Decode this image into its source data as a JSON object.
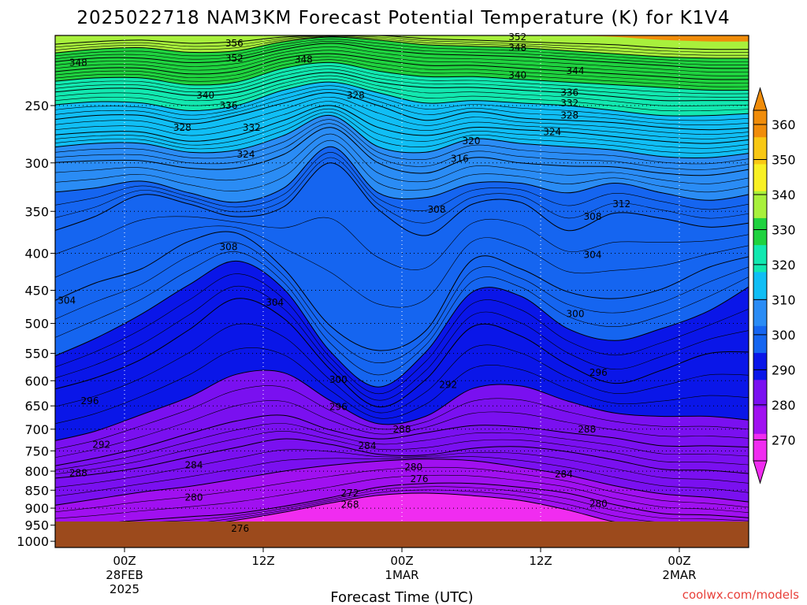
{
  "title": "2025022718 NAM3KM Forecast Potential Temperature (K) for K1V4",
  "credit": "coolwx.com/models",
  "colors": {
    "ground": "#9c4a1c",
    "credit": "#e8403a",
    "bands": [
      "#f02cf0",
      "#a010f0",
      "#7a10f0",
      "#0a16e8",
      "#1565f0",
      "#2a8cf5",
      "#10bef5",
      "#12e8b0",
      "#1fd23f",
      "#a8f03c",
      "#f8f024",
      "#f8c814",
      "#f08c0a"
    ]
  },
  "chart_data": {
    "type": "contour",
    "title": "2025022718 NAM3KM Forecast Potential Temperature (K) for K1V4",
    "xlabel": "Forecast Time (UTC)",
    "ylabel": "",
    "y_scale": "log-pressure",
    "ylim": [
      1000,
      200
    ],
    "grid": "dotted",
    "y_ticks": [
      250,
      300,
      350,
      400,
      450,
      500,
      550,
      600,
      650,
      700,
      750,
      800,
      850,
      900,
      950,
      1000
    ],
    "x_ticks": [
      {
        "hours": 6,
        "lines": [
          "00Z",
          "28FEB",
          "2025"
        ]
      },
      {
        "hours": 18,
        "lines": [
          "12Z"
        ]
      },
      {
        "hours": 30,
        "lines": [
          "00Z",
          "1MAR"
        ]
      },
      {
        "hours": 42,
        "lines": [
          "12Z"
        ]
      },
      {
        "hours": 54,
        "lines": [
          "00Z",
          "2MAR"
        ]
      }
    ],
    "xlim_hours": [
      0,
      60
    ],
    "colorbar": {
      "labels": [
        360,
        350,
        340,
        330,
        320,
        310,
        300,
        290,
        280,
        270
      ],
      "levels": [
        360,
        355,
        350,
        345,
        340,
        335,
        330,
        325,
        320,
        315,
        310,
        305,
        300,
        295,
        290,
        285,
        280,
        275,
        270
      ]
    },
    "isentropes": [
      {
        "theta": 272,
        "p": [
          955,
          955,
          955,
          955,
          935,
          912,
          885,
          864,
          858,
          865,
          878,
          905,
          940,
          955,
          955,
          955
        ]
      },
      {
        "theta": 276,
        "p": [
          950,
          945,
          935,
          925,
          915,
          895,
          870,
          842,
          832,
          832,
          842,
          858,
          890,
          915,
          920,
          930
        ]
      },
      {
        "theta": 280,
        "p": [
          895,
          875,
          855,
          840,
          820,
          800,
          785,
          775,
          770,
          774,
          790,
          810,
          838,
          860,
          870,
          885
        ]
      },
      {
        "theta": 284,
        "p": [
          820,
          808,
          790,
          765,
          742,
          722,
          735,
          758,
          760,
          744,
          740,
          752,
          772,
          795,
          798,
          808
        ]
      },
      {
        "theta": 288,
        "p": [
          790,
          768,
          742,
          710,
          682,
          670,
          702,
          722,
          708,
          692,
          695,
          708,
          720,
          738,
          738,
          742
        ]
      },
      {
        "theta": 292,
        "p": [
          730,
          705,
          668,
          632,
          588,
          585,
          640,
          688,
          672,
          615,
          610,
          640,
          665,
          672,
          672,
          682
        ]
      },
      {
        "theta": 296,
        "p": [
          620,
          595,
          560,
          510,
          462,
          492,
          580,
          652,
          598,
          505,
          520,
          570,
          605,
          580,
          550,
          548
        ]
      },
      {
        "theta": 300,
        "p": [
          560,
          525,
          485,
          442,
          410,
          448,
          548,
          612,
          548,
          452,
          458,
          508,
          528,
          508,
          480,
          438
        ]
      },
      {
        "theta": 304,
        "p": [
          470,
          440,
          420,
          385,
          375,
          420,
          505,
          545,
          512,
          408,
          420,
          452,
          462,
          448,
          418,
          402
        ]
      },
      {
        "theta": 308,
        "p": [
          375,
          356,
          332,
          342,
          356,
          345,
          300,
          348,
          378,
          342,
          340,
          372,
          352,
          358,
          368,
          362
        ]
      },
      {
        "theta": 312,
        "p": [
          330,
          325,
          318,
          330,
          340,
          325,
          285,
          330,
          335,
          320,
          320,
          330,
          320,
          330,
          338,
          330
        ]
      },
      {
        "theta": 316,
        "p": [
          300,
          298,
          298,
          305,
          305,
          292,
          268,
          300,
          310,
          295,
          300,
          303,
          304,
          310,
          312,
          305
        ]
      },
      {
        "theta": 320,
        "p": [
          286,
          282,
          282,
          290,
          288,
          275,
          258,
          285,
          290,
          278,
          282,
          285,
          288,
          294,
          295,
          290
        ]
      },
      {
        "theta": 324,
        "p": [
          275,
          272,
          272,
          280,
          275,
          262,
          250,
          268,
          275,
          268,
          270,
          272,
          276,
          280,
          282,
          278
        ]
      },
      {
        "theta": 328,
        "p": [
          262,
          258,
          258,
          265,
          258,
          248,
          240,
          250,
          262,
          255,
          260,
          262,
          264,
          268,
          270,
          268
        ]
      },
      {
        "theta": 332,
        "p": [
          250,
          247,
          248,
          254,
          250,
          238,
          232,
          240,
          248,
          246,
          248,
          250,
          254,
          258,
          258,
          256
        ]
      },
      {
        "theta": 336,
        "p": [
          240,
          237,
          237,
          242,
          240,
          230,
          225,
          232,
          236,
          236,
          238,
          240,
          243,
          246,
          246,
          246
        ]
      },
      {
        "theta": 340,
        "p": [
          232,
          229,
          229,
          234,
          232,
          222,
          218,
          224,
          228,
          228,
          230,
          232,
          234,
          236,
          238,
          238
        ]
      },
      {
        "theta": 344,
        "p": [
          225,
          222,
          222,
          226,
          224,
          215,
          212,
          216,
          220,
          220,
          222,
          224,
          226,
          228,
          230,
          230
        ]
      },
      {
        "theta": 348,
        "p": [
          218,
          215,
          215,
          218,
          216,
          209,
          205,
          209,
          212,
          213,
          214,
          216,
          218,
          220,
          222,
          222
        ]
      },
      {
        "theta": 352,
        "p": [
          212,
          209,
          208,
          211,
          210,
          204,
          201,
          203,
          206,
          207,
          208,
          210,
          212,
          214,
          215,
          215
        ]
      },
      {
        "theta": 356,
        "p": [
          206,
          204,
          203,
          205,
          204,
          201,
          200,
          200,
          202,
          203,
          204,
          205,
          206,
          208,
          209,
          209
        ]
      }
    ],
    "contour_labels": [
      {
        "text": "348",
        "hours": 2,
        "p": 218
      },
      {
        "text": "356",
        "hours": 15.5,
        "p": 205
      },
      {
        "text": "352",
        "hours": 15.5,
        "p": 215
      },
      {
        "text": "348",
        "hours": 21.5,
        "p": 216
      },
      {
        "text": "340",
        "hours": 13,
        "p": 242
      },
      {
        "text": "336",
        "hours": 15,
        "p": 250
      },
      {
        "text": "332",
        "hours": 17,
        "p": 268
      },
      {
        "text": "328",
        "hours": 11,
        "p": 268
      },
      {
        "text": "328",
        "hours": 26,
        "p": 242
      },
      {
        "text": "324",
        "hours": 16.5,
        "p": 292
      },
      {
        "text": "352",
        "hours": 40,
        "p": 201
      },
      {
        "text": "348",
        "hours": 40,
        "p": 208
      },
      {
        "text": "340",
        "hours": 40,
        "p": 227
      },
      {
        "text": "344",
        "hours": 45,
        "p": 224
      },
      {
        "text": "336",
        "hours": 44.5,
        "p": 240
      },
      {
        "text": "332",
        "hours": 44.5,
        "p": 248
      },
      {
        "text": "328",
        "hours": 44.5,
        "p": 258
      },
      {
        "text": "324",
        "hours": 43,
        "p": 272
      },
      {
        "text": "320",
        "hours": 36,
        "p": 280
      },
      {
        "text": "316",
        "hours": 35,
        "p": 296
      },
      {
        "text": "312",
        "hours": 49,
        "p": 342
      },
      {
        "text": "308",
        "hours": 33,
        "p": 348
      },
      {
        "text": "308",
        "hours": 46.5,
        "p": 356
      },
      {
        "text": "308",
        "hours": 15,
        "p": 392
      },
      {
        "text": "304",
        "hours": 46.5,
        "p": 402
      },
      {
        "text": "304",
        "hours": 1,
        "p": 465
      },
      {
        "text": "304",
        "hours": 19,
        "p": 468
      },
      {
        "text": "300",
        "hours": 45,
        "p": 485
      },
      {
        "text": "300",
        "hours": 24.5,
        "p": 598
      },
      {
        "text": "296",
        "hours": 47,
        "p": 585
      },
      {
        "text": "296",
        "hours": 3,
        "p": 640
      },
      {
        "text": "296",
        "hours": 24.5,
        "p": 652
      },
      {
        "text": "292",
        "hours": 34,
        "p": 608
      },
      {
        "text": "292",
        "hours": 4,
        "p": 735
      },
      {
        "text": "288",
        "hours": 30,
        "p": 700
      },
      {
        "text": "288",
        "hours": 46,
        "p": 700
      },
      {
        "text": "288",
        "hours": 2,
        "p": 805
      },
      {
        "text": "284",
        "hours": 27,
        "p": 738
      },
      {
        "text": "284",
        "hours": 12,
        "p": 785
      },
      {
        "text": "284",
        "hours": 44,
        "p": 808
      },
      {
        "text": "280",
        "hours": 31,
        "p": 790
      },
      {
        "text": "276",
        "hours": 31.5,
        "p": 820
      },
      {
        "text": "280",
        "hours": 12,
        "p": 870
      },
      {
        "text": "280",
        "hours": 47,
        "p": 888
      },
      {
        "text": "272",
        "hours": 25.5,
        "p": 858
      },
      {
        "text": "268",
        "hours": 25.5,
        "p": 890
      },
      {
        "text": "276",
        "hours": 16,
        "p": 960
      }
    ]
  }
}
